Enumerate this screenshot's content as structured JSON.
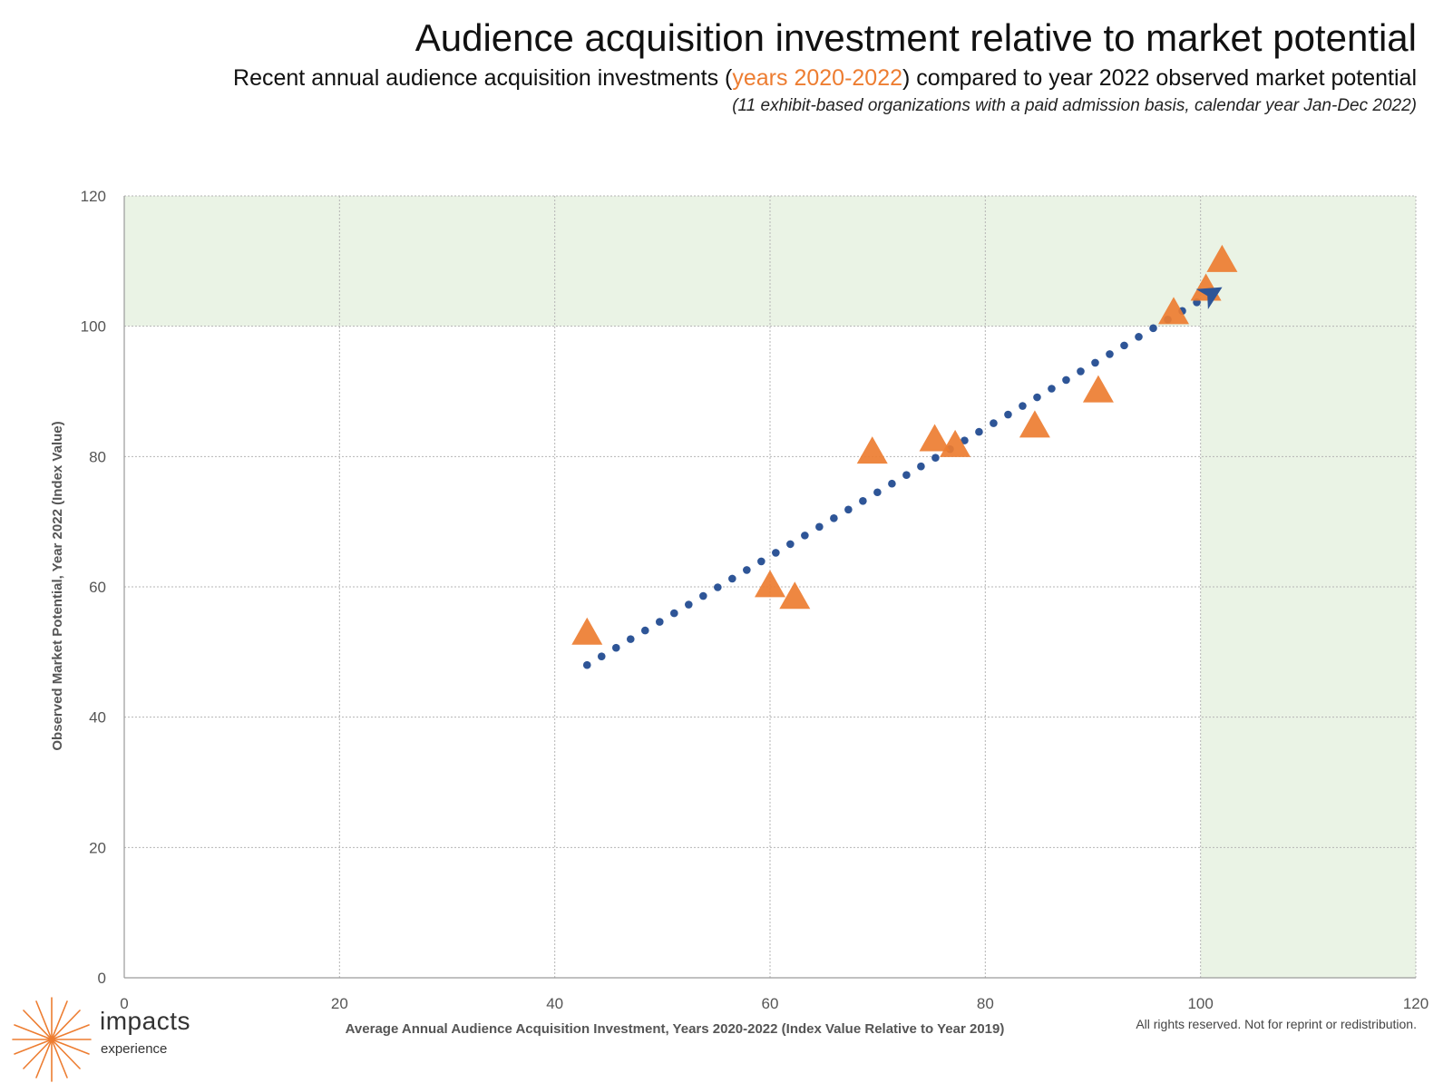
{
  "header": {
    "title": "Audience acquisition investment relative to market potential",
    "subtitle_pre": "Recent annual audience acquisition investments (",
    "subtitle_highlight": "years 2020-2022",
    "subtitle_post": ") compared to year 2022 observed market potential",
    "note": "(11 exhibit-based organizations with a paid admission basis, calendar year Jan-Dec 2022)"
  },
  "colors": {
    "highlight": "#ed7d31",
    "triangle": "#ed7d31",
    "trend": "#2e5597",
    "shade": "#eaf3e5"
  },
  "chart_data": {
    "type": "scatter",
    "xlabel": "Average Annual Audience Acquisition Investment, Years 2020-2022 (Index Value Relative to Year 2019)",
    "ylabel": "Observed Market Potential, Year 2022 (Index Value)",
    "xlim": [
      0,
      120
    ],
    "ylim": [
      0,
      120
    ],
    "x_ticks": [
      "0",
      "20",
      "40",
      "60",
      "80",
      "100",
      "120"
    ],
    "y_ticks": [
      "0",
      "20",
      "40",
      "60",
      "80",
      "100",
      "120"
    ],
    "grid": true,
    "shaded_regions": [
      {
        "x": [
          0,
          120
        ],
        "y": [
          100,
          120
        ]
      },
      {
        "x": [
          100,
          120
        ],
        "y": [
          0,
          120
        ]
      }
    ],
    "points": [
      {
        "x": 43.0,
        "y": 53.0
      },
      {
        "x": 60.0,
        "y": 60.3
      },
      {
        "x": 62.3,
        "y": 58.5
      },
      {
        "x": 69.5,
        "y": 80.8
      },
      {
        "x": 75.3,
        "y": 82.7
      },
      {
        "x": 77.2,
        "y": 81.8
      },
      {
        "x": 84.6,
        "y": 84.8
      },
      {
        "x": 90.5,
        "y": 90.2
      },
      {
        "x": 97.5,
        "y": 102.2
      },
      {
        "x": 100.5,
        "y": 105.8
      },
      {
        "x": 102.0,
        "y": 110.2
      }
    ],
    "trendline": {
      "x": [
        43.0,
        101.0
      ],
      "y": [
        48.0,
        105.0
      ]
    },
    "marker_point": {
      "x": 101.0,
      "y": 105.0
    }
  },
  "logo": {
    "line1": "impacts",
    "line2": "experience"
  },
  "footer": {
    "copyright": "All rights reserved. Not for reprint or redistribution."
  }
}
